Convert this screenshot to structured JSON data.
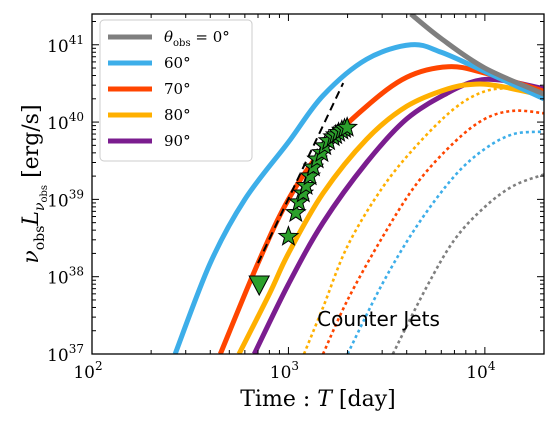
{
  "chart_data": {
    "type": "line",
    "xlabel": {
      "prefix": "Time : ",
      "symbol": "T",
      "unit": " [day]"
    },
    "ylabel": {
      "nu": "ν",
      "nu_sub": "obs",
      "L": "L",
      "L_sub": "ν",
      "L_subsub": "obs",
      "unit": " [erg/s]"
    },
    "xscale": "log",
    "yscale": "log",
    "xlim": [
      100,
      20000
    ],
    "ylim": [
      1e+37,
      2.5e+41
    ],
    "x_ticks": [
      {
        "value": 100,
        "base": "10",
        "exp": "2"
      },
      {
        "value": 1000,
        "base": "10",
        "exp": "3"
      },
      {
        "value": 10000,
        "base": "10",
        "exp": "4"
      }
    ],
    "y_ticks": [
      {
        "value": 1e+37,
        "base": "10",
        "exp": "37"
      },
      {
        "value": 1e+38,
        "base": "10",
        "exp": "38"
      },
      {
        "value": 1e+39,
        "base": "10",
        "exp": "39"
      },
      {
        "value": 1e+40,
        "base": "10",
        "exp": "40"
      },
      {
        "value": 1e+41,
        "base": "10",
        "exp": "41"
      }
    ],
    "grid": false,
    "legend": {
      "position": "top-left",
      "entries": [
        {
          "label_symbol": "θ",
          "label_sub": "obs",
          "label_rest": " = 0°",
          "color": "#7f7f7f"
        },
        {
          "label_symbol": "",
          "label_sub": "",
          "label_rest": "60°",
          "color": "#3daee9"
        },
        {
          "label_symbol": "",
          "label_sub": "",
          "label_rest": "70°",
          "color": "#ff4500"
        },
        {
          "label_symbol": "",
          "label_sub": "",
          "label_rest": "80°",
          "color": "#ffb000"
        },
        {
          "label_symbol": "",
          "label_sub": "",
          "label_rest": "90°",
          "color": "#7b1d8f"
        }
      ]
    },
    "series": [
      {
        "name": "θobs = 0°",
        "color": "#7f7f7f",
        "style": "solid",
        "points": [
          [
            4200,
            2.5e+41
          ],
          [
            6000,
            1.2e+41
          ],
          [
            10000,
            5e+40
          ],
          [
            20000,
            2.3e+40
          ]
        ]
      },
      {
        "name": "60°",
        "color": "#3daee9",
        "style": "solid",
        "points": [
          [
            265,
            1e+37
          ],
          [
            400,
            1.5e+38
          ],
          [
            600,
            1e+39
          ],
          [
            1000,
            5.5e+39
          ],
          [
            1500,
            2.2e+40
          ],
          [
            2500,
            6.5e+40
          ],
          [
            4200,
            1e+41
          ],
          [
            6000,
            8e+40
          ],
          [
            10000,
            4.5e+40
          ],
          [
            20000,
            2e+40
          ]
        ]
      },
      {
        "name": "70°",
        "color": "#ff4500",
        "style": "solid",
        "points": [
          [
            450,
            1e+37
          ],
          [
            700,
            1.5e+38
          ],
          [
            1000,
            1e+39
          ],
          [
            1500,
            4.5e+39
          ],
          [
            2500,
            1.6e+40
          ],
          [
            4000,
            3.8e+40
          ],
          [
            6500,
            5.2e+40
          ],
          [
            10000,
            4.3e+40
          ],
          [
            20000,
            2.5e+40
          ]
        ]
      },
      {
        "name": "80°",
        "color": "#ffb000",
        "style": "solid",
        "points": [
          [
            560,
            1e+37
          ],
          [
            800,
            6e+37
          ],
          [
            1000,
            2e+38
          ],
          [
            1500,
            1.2e+39
          ],
          [
            2500,
            6e+39
          ],
          [
            4000,
            1.6e+40
          ],
          [
            6500,
            2.7e+40
          ],
          [
            9000,
            3.1e+40
          ],
          [
            12000,
            2.9e+40
          ],
          [
            20000,
            2.2e+40
          ]
        ]
      },
      {
        "name": "90°",
        "color": "#7b1d8f",
        "style": "solid",
        "points": [
          [
            670,
            1e+37
          ],
          [
            1000,
            8e+37
          ],
          [
            1500,
            5e+38
          ],
          [
            2500,
            3e+39
          ],
          [
            4000,
            1.1e+40
          ],
          [
            6500,
            2.4e+40
          ],
          [
            9000,
            3.4e+40
          ],
          [
            12000,
            3.5e+40
          ],
          [
            20000,
            2.7e+40
          ]
        ]
      },
      {
        "name": "counter 70°",
        "color": "#ffb000",
        "style": "dotted",
        "points": [
          [
            1200,
            1e+37
          ],
          [
            1500,
            4e+37
          ],
          [
            2000,
            2.5e+38
          ],
          [
            3000,
            1.4e+39
          ],
          [
            4500,
            5e+39
          ],
          [
            7000,
            1.5e+40
          ],
          [
            10000,
            2.5e+40
          ],
          [
            14000,
            2.7e+40
          ],
          [
            20000,
            2.3e+40
          ]
        ]
      },
      {
        "name": "counter 60°",
        "color": "#ff4500",
        "style": "dotted",
        "points": [
          [
            1500,
            1e+37
          ],
          [
            2000,
            5e+37
          ],
          [
            3000,
            3.2e+38
          ],
          [
            4500,
            1.6e+39
          ],
          [
            7000,
            5.5e+39
          ],
          [
            10000,
            1.1e+40
          ],
          [
            14000,
            1.4e+40
          ],
          [
            20000,
            1.3e+40
          ]
        ]
      },
      {
        "name": "counter 80°",
        "color": "#3daee9",
        "style": "dotted",
        "points": [
          [
            2000,
            1e+37
          ],
          [
            3000,
            8e+37
          ],
          [
            4500,
            4.5e+38
          ],
          [
            7000,
            2e+39
          ],
          [
            10000,
            4.5e+39
          ],
          [
            14000,
            7e+39
          ],
          [
            20000,
            7.5e+39
          ]
        ]
      },
      {
        "name": "counter 0°",
        "color": "#7f7f7f",
        "style": "dotted",
        "points": [
          [
            3400,
            1e+37
          ],
          [
            5000,
            7e+37
          ],
          [
            7000,
            3e+38
          ],
          [
            10000,
            8e+38
          ],
          [
            14000,
            1.5e+39
          ],
          [
            20000,
            2.1e+39
          ]
        ]
      }
    ],
    "reference_line": {
      "style": "dashed",
      "color": "#000000",
      "points": [
        [
          700,
          1.5e+38
        ],
        [
          1900,
          3.2e+40
        ]
      ]
    },
    "observations": {
      "stars": {
        "color": "#2ca02c",
        "points": [
          [
            1000,
            3.3e+38
          ],
          [
            1090,
            6.7e+38
          ],
          [
            1130,
            9.2e+38
          ],
          [
            1190,
            1.2e+39
          ],
          [
            1230,
            1.5e+39
          ],
          [
            1290,
            2e+39
          ],
          [
            1340,
            2.6e+39
          ],
          [
            1400,
            3.3e+39
          ],
          [
            1480,
            4e+39
          ],
          [
            1530,
            4.9e+39
          ],
          [
            1600,
            5.7e+39
          ],
          [
            1690,
            6.4e+39
          ],
          [
            1740,
            6.8e+39
          ],
          [
            1800,
            7.3e+39
          ],
          [
            1870,
            7.8e+39
          ],
          [
            1930,
            8.2e+39
          ],
          [
            1990,
            8.5e+39
          ]
        ]
      },
      "upper_limit": {
        "color": "#2ca02c",
        "marker": "triangle-down",
        "points": [
          [
            710,
            7.8e+37
          ]
        ]
      }
    },
    "annotations": [
      {
        "text": "Counter Jets",
        "x": 1400,
        "y": 2.3e+37
      }
    ]
  }
}
